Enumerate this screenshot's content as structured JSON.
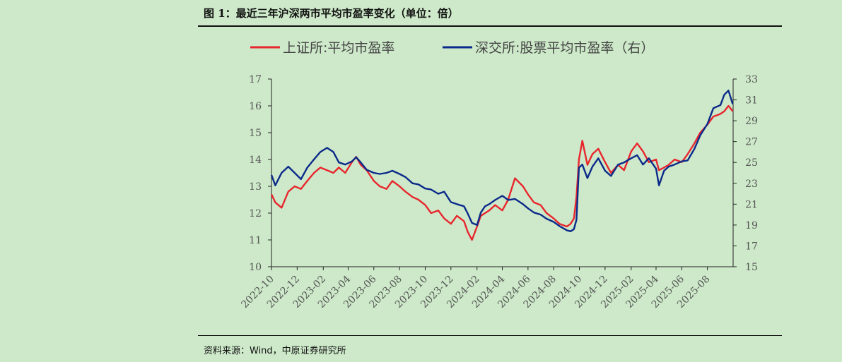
{
  "figure": {
    "title": "图 1：最近三年沪深两市平均市盈率变化（单位：倍）",
    "source": "资料来源：Wind，中原证券研究所"
  },
  "chart_data": {
    "type": "line",
    "title": "",
    "legend_position": "top",
    "grid": false,
    "x_ticks": [
      "2022-10",
      "2022-12",
      "2023-02",
      "2023-04",
      "2023-06",
      "2023-08",
      "2023-10",
      "2023-12",
      "2024-02",
      "2024-04",
      "2024-06",
      "2024-08",
      "2024-10",
      "2024-12",
      "2025-02",
      "2025-04",
      "2025-06",
      "2025-08"
    ],
    "y_left": {
      "lim": [
        10,
        17
      ],
      "ticks": [
        10,
        11,
        12,
        13,
        14,
        15,
        16,
        17
      ]
    },
    "y_right": {
      "lim": [
        15,
        33
      ],
      "ticks": [
        15,
        17,
        19,
        21,
        23,
        25,
        27,
        29,
        31,
        33
      ]
    },
    "series": [
      {
        "name": "上证所:平均市盈率",
        "axis": "left",
        "color": "#e8262d",
        "x": [
          "2022-10-01",
          "2022-10-10",
          "2022-10-25",
          "2022-11-10",
          "2022-11-25",
          "2022-12-10",
          "2022-12-25",
          "2023-01-10",
          "2023-01-25",
          "2023-02-10",
          "2023-02-25",
          "2023-03-10",
          "2023-03-25",
          "2023-04-10",
          "2023-04-20",
          "2023-05-01",
          "2023-05-15",
          "2023-06-01",
          "2023-06-15",
          "2023-07-01",
          "2023-07-15",
          "2023-08-01",
          "2023-08-15",
          "2023-09-01",
          "2023-09-15",
          "2023-10-01",
          "2023-10-15",
          "2023-11-01",
          "2023-11-15",
          "2023-12-01",
          "2023-12-15",
          "2024-01-01",
          "2024-01-10",
          "2024-01-20",
          "2024-02-01",
          "2024-02-10",
          "2024-02-20",
          "2024-03-01",
          "2024-03-15",
          "2024-04-01",
          "2024-04-15",
          "2024-05-01",
          "2024-05-20",
          "2024-06-01",
          "2024-06-15",
          "2024-07-01",
          "2024-07-15",
          "2024-08-01",
          "2024-08-15",
          "2024-09-01",
          "2024-09-10",
          "2024-09-18",
          "2024-09-24",
          "2024-09-30",
          "2024-10-08",
          "2024-10-20",
          "2024-11-01",
          "2024-11-15",
          "2024-12-01",
          "2024-12-15",
          "2025-01-01",
          "2025-01-15",
          "2025-02-01",
          "2025-02-15",
          "2025-03-01",
          "2025-03-15",
          "2025-04-01",
          "2025-04-08",
          "2025-04-20",
          "2025-05-01",
          "2025-05-15",
          "2025-06-01",
          "2025-06-15",
          "2025-07-01",
          "2025-07-15",
          "2025-08-01",
          "2025-08-15",
          "2025-09-01",
          "2025-09-10",
          "2025-09-20",
          "2025-09-30"
        ],
        "values": [
          12.7,
          12.4,
          12.2,
          12.8,
          13.0,
          12.9,
          13.2,
          13.5,
          13.7,
          13.6,
          13.5,
          13.7,
          13.5,
          13.9,
          14.1,
          13.8,
          13.6,
          13.2,
          13.0,
          12.9,
          13.2,
          13.0,
          12.8,
          12.6,
          12.5,
          12.3,
          12.0,
          12.1,
          11.8,
          11.6,
          11.9,
          11.7,
          11.3,
          11.0,
          11.5,
          11.9,
          12.0,
          12.1,
          12.3,
          12.1,
          12.5,
          13.3,
          13.0,
          12.7,
          12.4,
          12.3,
          12.0,
          11.8,
          11.6,
          11.5,
          11.6,
          11.8,
          12.6,
          14.0,
          14.7,
          13.8,
          14.2,
          14.4,
          13.9,
          13.5,
          13.8,
          13.6,
          14.3,
          14.6,
          14.3,
          13.9,
          14.0,
          13.6,
          13.7,
          13.8,
          14.0,
          13.9,
          14.2,
          14.6,
          15.0,
          15.3,
          15.6,
          15.7,
          15.8,
          16.0,
          15.8
        ]
      },
      {
        "name": "深交所:股票平均市盈率（右）",
        "axis": "right",
        "color": "#0c2a8a",
        "x": [
          "2022-10-01",
          "2022-10-10",
          "2022-10-25",
          "2022-11-10",
          "2022-11-25",
          "2022-12-10",
          "2022-12-25",
          "2023-01-10",
          "2023-01-25",
          "2023-02-10",
          "2023-02-25",
          "2023-03-10",
          "2023-03-25",
          "2023-04-10",
          "2023-04-20",
          "2023-05-01",
          "2023-05-15",
          "2023-06-01",
          "2023-06-15",
          "2023-07-01",
          "2023-07-15",
          "2023-08-01",
          "2023-08-15",
          "2023-09-01",
          "2023-09-15",
          "2023-10-01",
          "2023-10-15",
          "2023-11-01",
          "2023-11-15",
          "2023-12-01",
          "2023-12-15",
          "2024-01-01",
          "2024-01-10",
          "2024-01-20",
          "2024-02-01",
          "2024-02-10",
          "2024-02-20",
          "2024-03-01",
          "2024-03-15",
          "2024-04-01",
          "2024-04-15",
          "2024-05-01",
          "2024-05-20",
          "2024-06-01",
          "2024-06-15",
          "2024-07-01",
          "2024-07-15",
          "2024-08-01",
          "2024-08-15",
          "2024-09-01",
          "2024-09-10",
          "2024-09-18",
          "2024-09-24",
          "2024-09-30",
          "2024-10-08",
          "2024-10-20",
          "2024-11-01",
          "2024-11-15",
          "2024-12-01",
          "2024-12-15",
          "2025-01-01",
          "2025-01-15",
          "2025-02-01",
          "2025-02-15",
          "2025-03-01",
          "2025-03-15",
          "2025-04-01",
          "2025-04-08",
          "2025-04-20",
          "2025-05-01",
          "2025-05-15",
          "2025-06-01",
          "2025-06-15",
          "2025-07-01",
          "2025-07-15",
          "2025-08-01",
          "2025-08-15",
          "2025-09-01",
          "2025-09-10",
          "2025-09-20",
          "2025-09-30"
        ],
        "values": [
          23.8,
          22.8,
          24.0,
          24.6,
          24.0,
          23.4,
          24.5,
          25.3,
          26.0,
          26.4,
          26.0,
          25.0,
          24.8,
          25.1,
          25.5,
          25.0,
          24.3,
          24.0,
          23.9,
          24.0,
          24.2,
          23.9,
          23.6,
          23.0,
          22.9,
          22.5,
          22.4,
          22.0,
          22.2,
          21.2,
          21.0,
          20.8,
          20.1,
          19.2,
          19.0,
          20.2,
          20.8,
          21.0,
          21.4,
          21.8,
          21.4,
          21.5,
          21.0,
          20.6,
          20.2,
          20.0,
          19.6,
          19.3,
          18.9,
          18.5,
          18.4,
          18.6,
          19.5,
          24.5,
          24.8,
          23.5,
          24.6,
          25.4,
          24.2,
          23.7,
          24.8,
          25.0,
          25.4,
          25.7,
          24.8,
          25.4,
          24.4,
          22.8,
          24.2,
          24.6,
          24.8,
          25.1,
          25.2,
          26.3,
          27.6,
          28.7,
          30.2,
          30.5,
          31.5,
          31.9,
          30.6
        ]
      }
    ]
  }
}
